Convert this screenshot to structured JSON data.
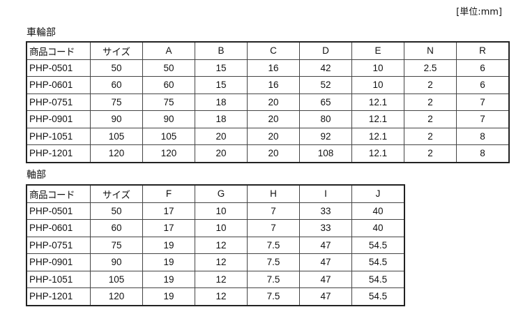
{
  "unit_label": "[単位:mm]",
  "wheel": {
    "title": "車輪部",
    "headers": [
      "商品コード",
      "サイズ",
      "A",
      "B",
      "C",
      "D",
      "E",
      "N",
      "R"
    ],
    "rows": [
      [
        "PHP-0501",
        "50",
        "50",
        "15",
        "16",
        "42",
        "10",
        "2.5",
        "6"
      ],
      [
        "PHP-0601",
        "60",
        "60",
        "15",
        "16",
        "52",
        "10",
        "2",
        "6"
      ],
      [
        "PHP-0751",
        "75",
        "75",
        "18",
        "20",
        "65",
        "12.1",
        "2",
        "7"
      ],
      [
        "PHP-0901",
        "90",
        "90",
        "18",
        "20",
        "80",
        "12.1",
        "2",
        "7"
      ],
      [
        "PHP-1051",
        "105",
        "105",
        "20",
        "20",
        "92",
        "12.1",
        "2",
        "8"
      ],
      [
        "PHP-1201",
        "120",
        "120",
        "20",
        "20",
        "108",
        "12.1",
        "2",
        "8"
      ]
    ]
  },
  "shaft": {
    "title": "軸部",
    "headers": [
      "商品コード",
      "サイズ",
      "F",
      "G",
      "H",
      "I",
      "J"
    ],
    "rows": [
      [
        "PHP-0501",
        "50",
        "17",
        "10",
        "7",
        "33",
        "40"
      ],
      [
        "PHP-0601",
        "60",
        "17",
        "10",
        "7",
        "33",
        "40"
      ],
      [
        "PHP-0751",
        "75",
        "19",
        "12",
        "7.5",
        "47",
        "54.5"
      ],
      [
        "PHP-0901",
        "90",
        "19",
        "12",
        "7.5",
        "47",
        "54.5"
      ],
      [
        "PHP-1051",
        "105",
        "19",
        "12",
        "7.5",
        "47",
        "54.5"
      ],
      [
        "PHP-1201",
        "120",
        "19",
        "12",
        "7.5",
        "47",
        "54.5"
      ]
    ]
  }
}
